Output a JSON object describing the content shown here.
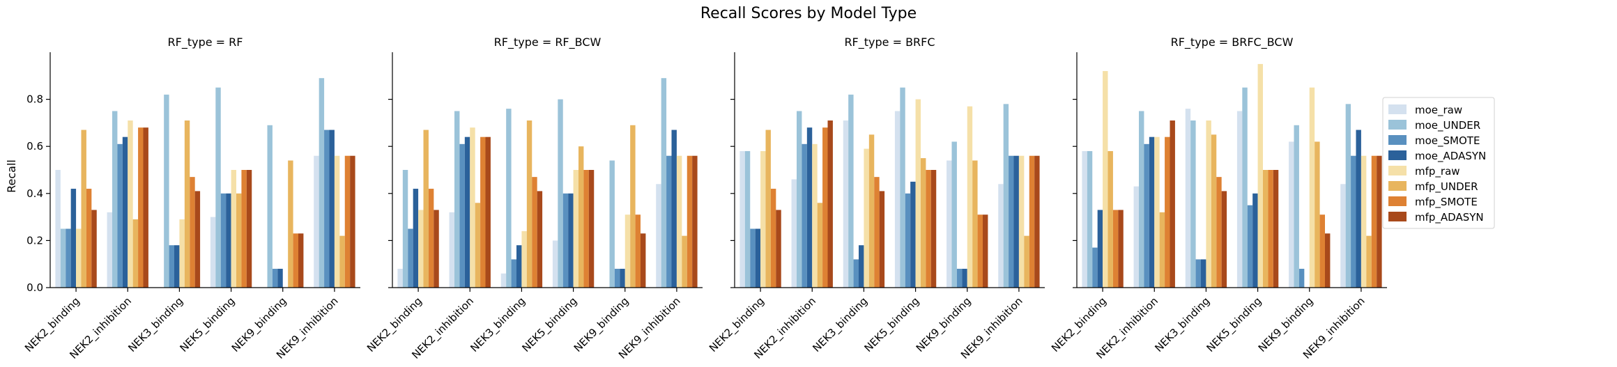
{
  "chart_data": {
    "type": "bar",
    "title": "Recall Scores by Model Type",
    "ylabel": "Recall",
    "xlabel": "",
    "ylim": [
      0,
      1.0
    ],
    "yticks": [
      "0.0",
      "0.2",
      "0.4",
      "0.6",
      "0.8"
    ],
    "grid": false,
    "legend_position": "right",
    "categories": [
      "NEK2_binding",
      "NEK2_inhibition",
      "NEK3_binding",
      "NEK5_binding",
      "NEK9_binding",
      "NEK9_inhibition"
    ],
    "series_names": [
      "moe_raw",
      "moe_UNDER",
      "moe_SMOTE",
      "moe_ADASYN",
      "mfp_raw",
      "mfp_UNDER",
      "mfp_SMOTE",
      "mfp_ADASYN"
    ],
    "colors": [
      "#d4e1ef",
      "#9bc3d9",
      "#5990bf",
      "#2b619a",
      "#f5e0a8",
      "#e8b55e",
      "#de8133",
      "#a8491b"
    ],
    "panels": [
      {
        "title": "RF_type = RF",
        "values": [
          [
            0.5,
            0.25,
            0.25,
            0.42,
            0.25,
            0.67,
            0.42,
            0.33
          ],
          [
            0.32,
            0.75,
            0.61,
            0.64,
            0.71,
            0.29,
            0.68,
            0.68
          ],
          [
            0.0,
            0.82,
            0.18,
            0.18,
            0.29,
            0.71,
            0.47,
            0.41
          ],
          [
            0.3,
            0.85,
            0.4,
            0.4,
            0.5,
            0.4,
            0.5,
            0.5
          ],
          [
            0.0,
            0.69,
            0.08,
            0.08,
            0.0,
            0.54,
            0.23,
            0.23
          ],
          [
            0.56,
            0.89,
            0.67,
            0.67,
            0.56,
            0.22,
            0.56,
            0.56
          ]
        ]
      },
      {
        "title": "RF_type = RF_BCW",
        "values": [
          [
            0.08,
            0.5,
            0.25,
            0.42,
            0.33,
            0.67,
            0.42,
            0.33
          ],
          [
            0.32,
            0.75,
            0.61,
            0.64,
            0.68,
            0.36,
            0.64,
            0.64
          ],
          [
            0.06,
            0.76,
            0.12,
            0.18,
            0.24,
            0.71,
            0.47,
            0.41
          ],
          [
            0.2,
            0.8,
            0.4,
            0.4,
            0.5,
            0.6,
            0.5,
            0.5
          ],
          [
            0.0,
            0.54,
            0.08,
            0.08,
            0.31,
            0.69,
            0.31,
            0.23
          ],
          [
            0.44,
            0.89,
            0.56,
            0.67,
            0.56,
            0.22,
            0.56,
            0.56
          ]
        ]
      },
      {
        "title": "RF_type = BRFC",
        "values": [
          [
            0.58,
            0.58,
            0.25,
            0.25,
            0.58,
            0.67,
            0.42,
            0.33
          ],
          [
            0.46,
            0.75,
            0.61,
            0.68,
            0.61,
            0.36,
            0.68,
            0.71
          ],
          [
            0.71,
            0.82,
            0.12,
            0.18,
            0.59,
            0.65,
            0.47,
            0.41
          ],
          [
            0.75,
            0.85,
            0.4,
            0.45,
            0.8,
            0.55,
            0.5,
            0.5
          ],
          [
            0.54,
            0.62,
            0.08,
            0.08,
            0.77,
            0.54,
            0.31,
            0.31
          ],
          [
            0.44,
            0.78,
            0.56,
            0.56,
            0.56,
            0.22,
            0.56,
            0.56
          ]
        ]
      },
      {
        "title": "RF_type = BRFC_BCW",
        "values": [
          [
            0.58,
            0.58,
            0.17,
            0.33,
            0.92,
            0.58,
            0.33,
            0.33
          ],
          [
            0.43,
            0.75,
            0.61,
            0.64,
            0.64,
            0.32,
            0.64,
            0.71
          ],
          [
            0.76,
            0.71,
            0.12,
            0.12,
            0.71,
            0.65,
            0.47,
            0.41
          ],
          [
            0.75,
            0.85,
            0.35,
            0.4,
            0.95,
            0.5,
            0.5,
            0.5
          ],
          [
            0.62,
            0.69,
            0.08,
            0.0,
            0.85,
            0.62,
            0.31,
            0.23
          ],
          [
            0.44,
            0.78,
            0.56,
            0.67,
            0.56,
            0.22,
            0.56,
            0.56
          ]
        ]
      }
    ]
  }
}
